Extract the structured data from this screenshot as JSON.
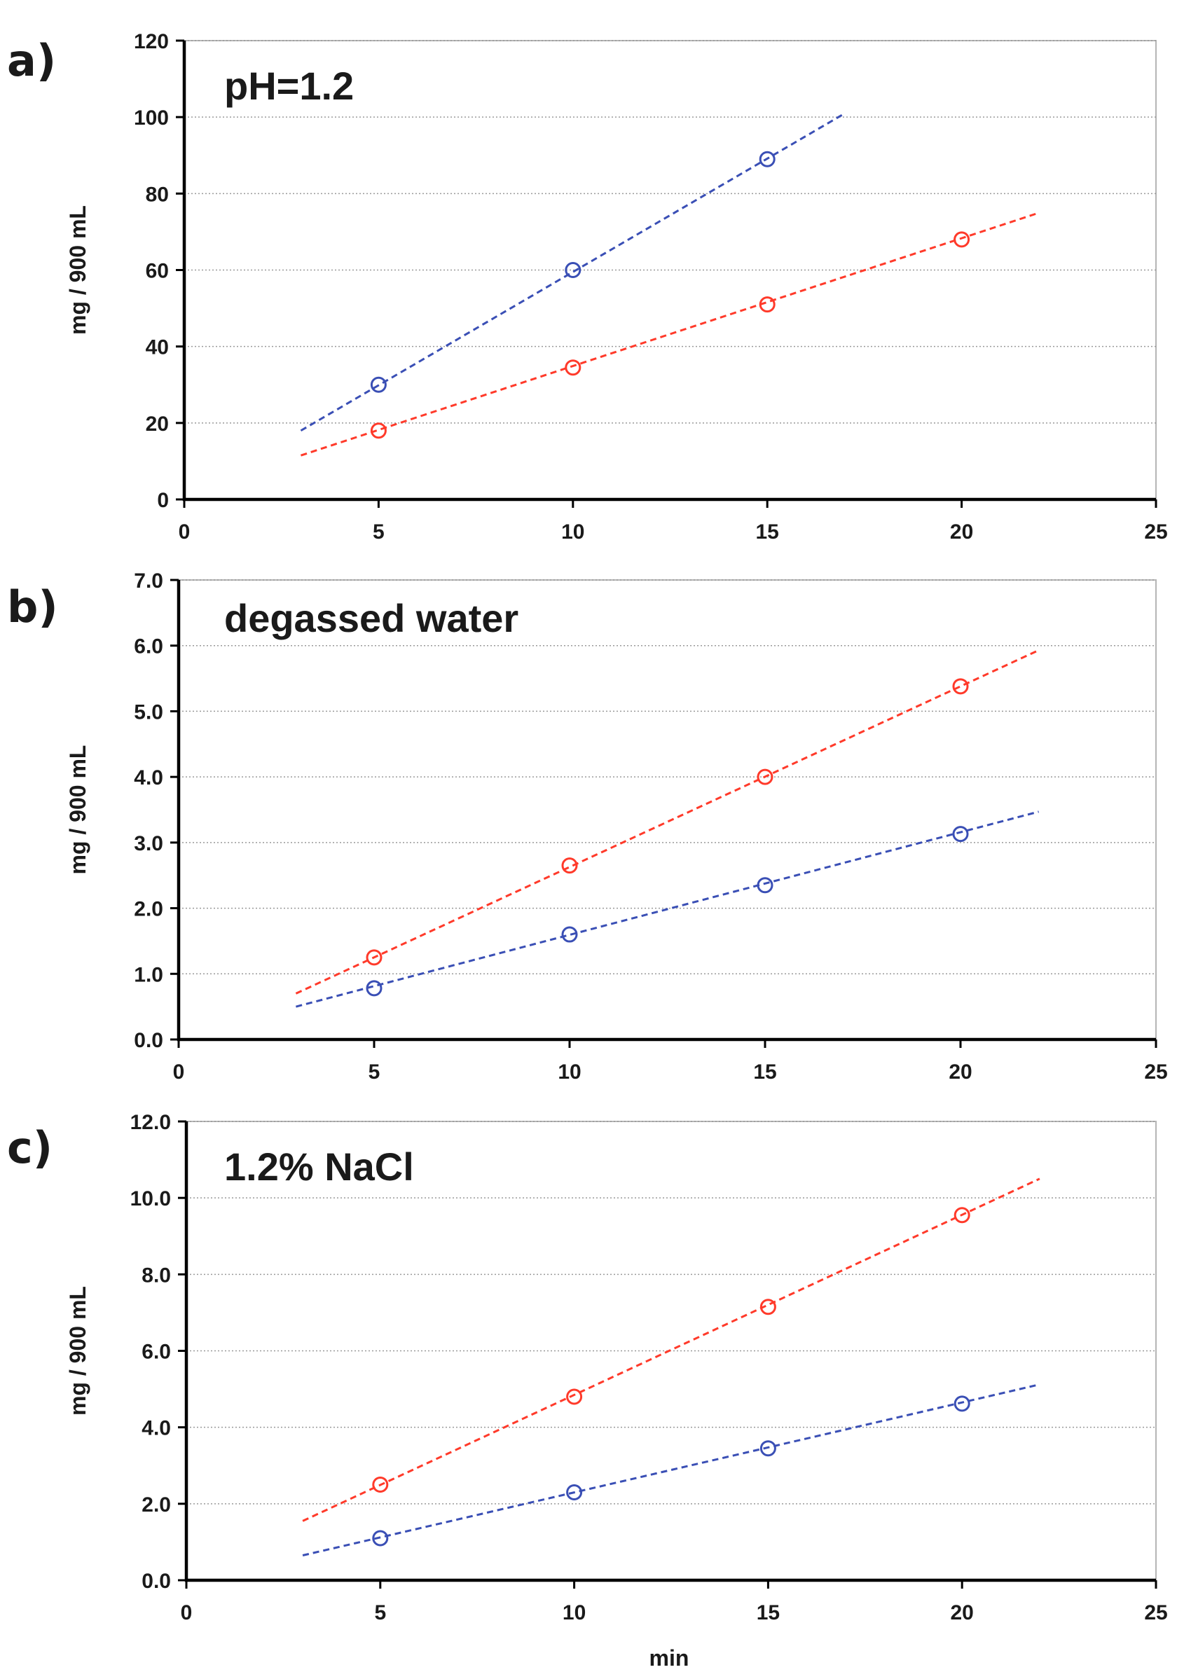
{
  "colors": {
    "red_series": "#ff3a2a",
    "blue_series": "#3a4fb5",
    "axis": "#000000"
  },
  "chart_data": [
    {
      "type": "scatter",
      "panel_label": "a)",
      "title": "pH=1.2",
      "xlabel": "",
      "ylabel": "mg / 900 mL",
      "xlim": [
        0,
        25
      ],
      "ylim": [
        0,
        120
      ],
      "x_ticks": [
        "0",
        "5",
        "10",
        "15",
        "20",
        "25"
      ],
      "y_ticks": [
        "0",
        "20",
        "40",
        "60",
        "80",
        "100",
        "120"
      ],
      "grid": true,
      "series": [
        {
          "name": "blue",
          "color": "#3a4fb5",
          "x": [
            5,
            10,
            15
          ],
          "y": [
            30,
            60,
            89
          ],
          "fit_x": [
            3,
            17
          ],
          "fit_y": [
            18,
            101
          ]
        },
        {
          "name": "red",
          "color": "#ff3a2a",
          "x": [
            5,
            10,
            15,
            20
          ],
          "y": [
            18,
            34.5,
            51,
            68
          ],
          "fit_x": [
            3,
            22
          ],
          "fit_y": [
            11.5,
            75
          ]
        }
      ]
    },
    {
      "type": "scatter",
      "panel_label": "b)",
      "title": "degassed water",
      "xlabel": "",
      "ylabel": "mg / 900 mL",
      "xlim": [
        0,
        25
      ],
      "ylim": [
        0,
        7
      ],
      "x_ticks": [
        "0",
        "5",
        "10",
        "15",
        "20",
        "25"
      ],
      "y_ticks": [
        "0.0",
        "1.0",
        "2.0",
        "3.0",
        "4.0",
        "5.0",
        "6.0",
        "7.0"
      ],
      "grid": true,
      "series": [
        {
          "name": "red",
          "color": "#ff3a2a",
          "x": [
            5,
            10,
            15,
            20
          ],
          "y": [
            1.25,
            2.65,
            4.0,
            5.38
          ],
          "fit_x": [
            3,
            22
          ],
          "fit_y": [
            0.7,
            5.93
          ]
        },
        {
          "name": "blue",
          "color": "#3a4fb5",
          "x": [
            5,
            10,
            15,
            20
          ],
          "y": [
            0.78,
            1.6,
            2.35,
            3.13
          ],
          "fit_x": [
            3,
            22
          ],
          "fit_y": [
            0.5,
            3.47
          ]
        }
      ]
    },
    {
      "type": "scatter",
      "panel_label": "c)",
      "title": "1.2% NaCl",
      "xlabel": "min",
      "ylabel": "mg / 900 mL",
      "xlim": [
        0,
        25
      ],
      "ylim": [
        0,
        12
      ],
      "x_ticks": [
        "0",
        "5",
        "10",
        "15",
        "20",
        "25"
      ],
      "y_ticks": [
        "0.0",
        "2.0",
        "4.0",
        "6.0",
        "8.0",
        "10.0",
        "12.0"
      ],
      "grid": true,
      "series": [
        {
          "name": "red",
          "color": "#ff3a2a",
          "x": [
            5,
            10,
            15,
            20
          ],
          "y": [
            2.5,
            4.8,
            7.15,
            9.55
          ],
          "fit_x": [
            3,
            22
          ],
          "fit_y": [
            1.55,
            10.5
          ]
        },
        {
          "name": "blue",
          "color": "#3a4fb5",
          "x": [
            5,
            10,
            15,
            20
          ],
          "y": [
            1.1,
            2.3,
            3.45,
            4.62
          ],
          "fit_x": [
            3,
            22
          ],
          "fit_y": [
            0.65,
            5.12
          ]
        }
      ]
    }
  ]
}
